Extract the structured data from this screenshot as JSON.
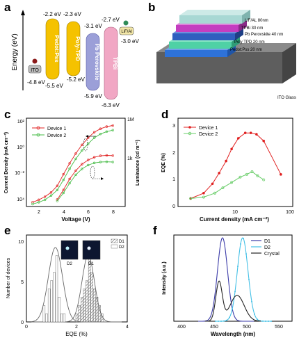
{
  "panel_labels": [
    "a",
    "b",
    "c",
    "d",
    "e",
    "f"
  ],
  "panel_a": {
    "ylabel": "Energy (eV)",
    "ito": {
      "label": "ITO",
      "value": "-4.8 eV"
    },
    "layers": [
      {
        "name": "Pedot:Pss",
        "top": "-2.2 eV",
        "bottom": "-5.5 eV",
        "color": "#f5c200"
      },
      {
        "name": "Poly-TPD",
        "top": "-2.3 eV",
        "bottom": "-5.2 eV",
        "color": "#f5c200"
      },
      {
        "name": "Pb Perovskite",
        "top": "-3.1 eV",
        "bottom": "-5.9 eV",
        "color": "#9b9fd8"
      },
      {
        "name": "TPBi",
        "top": "-2.7 eV",
        "bottom": "-6.3 eV",
        "color": "#f1a7c4"
      }
    ],
    "lifal": {
      "label": "LiF/Al",
      "value": "-3.0 eV"
    }
  },
  "panel_b": {
    "layers": [
      {
        "label": "LiF/AL 80nm",
        "color": "#a8d8d4"
      },
      {
        "label": "TPBi 30 nm",
        "color": "#c43ec0"
      },
      {
        "label": "Pb Perovskite 40 nm",
        "color": "#2e5fbf"
      },
      {
        "label": "Poly TPD 20 nm",
        "color": "#4fd1a5"
      },
      {
        "label": "Pedot:Pss 20 nm",
        "color": "#2e72d8"
      },
      {
        "label": "ITO Glass",
        "color": "#5e5e5e"
      }
    ]
  },
  "chart_data": [
    {
      "panel": "c",
      "type": "line",
      "xlabel": "Voltage (V)",
      "ylabel": "Current Density (mA cm⁻²)",
      "y2label": "Luminance (cd m⁻²)",
      "xlim": [
        1,
        9
      ],
      "xticks": [
        "2",
        "4",
        "6",
        "8"
      ],
      "yticks": [
        "10⁴",
        "10⁻²",
        "10⁰",
        "10²"
      ],
      "y2ticks": [
        "1M",
        "1k"
      ],
      "series": [
        {
          "name": "Device 1",
          "color": "#e02020",
          "current_density": {
            "x": [
              1.5,
              2.0,
              2.5,
              3.0,
              3.5,
              4.0,
              4.5,
              5.0,
              5.5,
              6.0,
              6.5,
              7.0,
              7.5,
              8.0
            ],
            "y": [
              0.0002,
              0.0003,
              0.0005,
              0.001,
              0.003,
              0.02,
              0.12,
              0.6,
              2.5,
              8,
              20,
              35,
              50,
              60
            ]
          },
          "luminance": {
            "x": [
              3.5,
              4.0,
              4.5,
              5.0,
              5.5,
              6.0,
              6.5,
              7.0,
              7.5,
              8.0
            ],
            "y": [
              1,
              5,
              30,
              120,
              350,
              700,
              1100,
              1400,
              1500,
              1450
            ]
          }
        },
        {
          "name": "Device 2",
          "color": "#44bb44",
          "current_density": {
            "x": [
              1.5,
              2.0,
              2.5,
              3.0,
              3.5,
              4.0,
              4.5,
              5.0,
              5.5,
              6.0,
              6.5,
              7.0,
              7.5,
              8.0
            ],
            "y": [
              0.00015,
              0.0002,
              0.0003,
              0.0006,
              0.0015,
              0.008,
              0.05,
              0.25,
              1,
              3,
              8,
              15,
              22,
              28
            ]
          },
          "luminance": {
            "x": [
              3.5,
              4.0,
              4.5,
              5.0,
              5.5,
              6.0,
              6.5,
              7.0,
              7.5,
              8.0
            ],
            "y": [
              0.8,
              3,
              15,
              60,
              160,
              300,
              430,
              500,
              520,
              500
            ]
          }
        }
      ]
    },
    {
      "panel": "d",
      "type": "line",
      "xlabel": "Current density (mA cm⁻²)",
      "ylabel": "EQE (%)",
      "xscale": "log",
      "xlim": [
        1,
        100
      ],
      "ylim": [
        0,
        3.3
      ],
      "xticks": [
        "10",
        "100"
      ],
      "yticks": [
        "0",
        "1",
        "2",
        "3"
      ],
      "series": [
        {
          "name": "Device 1",
          "color": "#e02020",
          "x": [
            2.5,
            4,
            5.5,
            7,
            9,
            11,
            14,
            18,
            22,
            27,
            35,
            65
          ],
          "y": [
            0.3,
            0.5,
            0.85,
            1.25,
            1.7,
            2.15,
            2.55,
            2.75,
            2.75,
            2.7,
            2.45,
            1.2
          ]
        },
        {
          "name": "Device 2",
          "color": "#66cc66",
          "x": [
            2.5,
            4,
            6,
            8,
            11,
            15,
            19,
            23,
            28,
            35
          ],
          "y": [
            0.3,
            0.35,
            0.5,
            0.7,
            0.9,
            1.1,
            1.2,
            1.3,
            1.15,
            1.0
          ]
        }
      ]
    },
    {
      "panel": "e",
      "type": "bar",
      "xlabel": "EQE (%)",
      "ylabel": "Number of devices",
      "xlim": [
        0,
        4
      ],
      "ylim": [
        0,
        10.5
      ],
      "xticks": [
        "0",
        "2",
        "4"
      ],
      "yticks": [
        "0",
        "5",
        "10"
      ],
      "legend": [
        "D1",
        "D2"
      ],
      "inset_labels": [
        "D2",
        "D1"
      ],
      "series": [
        {
          "name": "D1",
          "pattern": "hatched",
          "x": [
            2.0,
            2.1,
            2.2,
            2.3,
            2.4,
            2.5,
            2.6,
            2.7,
            2.8,
            2.9,
            3.0
          ],
          "values": [
            1,
            2,
            3,
            4,
            5,
            8,
            6,
            4,
            3,
            2,
            1
          ],
          "fit": {
            "mean": 2.45,
            "sigma": 0.25,
            "amplitude": 8
          }
        },
        {
          "name": "D2",
          "pattern": "plain",
          "x": [
            0.7,
            0.8,
            0.9,
            1.0,
            1.1,
            1.2,
            1.3,
            1.4,
            1.5
          ],
          "values": [
            2,
            1,
            4,
            5,
            6,
            8,
            3,
            1,
            1
          ],
          "fit": {
            "mean": 1.15,
            "sigma": 0.28,
            "amplitude": 9
          }
        }
      ]
    },
    {
      "panel": "f",
      "type": "line",
      "xlabel": "Wavelength (nm)",
      "ylabel": "Intensity (a.u.)",
      "xlim": [
        380,
        550
      ],
      "xticks": [
        "400",
        "450",
        "500",
        "550"
      ],
      "series": [
        {
          "name": "D1",
          "color": "#3a3aa8",
          "peak": 450,
          "fwhm": 17
        },
        {
          "name": "D2",
          "color": "#44c0e6",
          "peak": 479,
          "fwhm": 18
        },
        {
          "name": "Crystal",
          "color": "#222222",
          "peaks": [
            {
              "center": 445,
              "height": 0.47
            },
            {
              "center": 471,
              "height": 0.31
            }
          ]
        }
      ]
    }
  ]
}
